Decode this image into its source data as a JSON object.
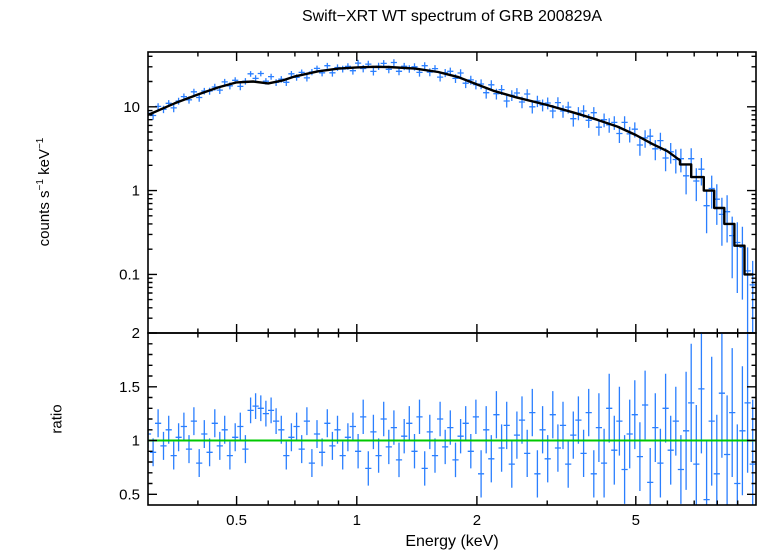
{
  "title": "Swift−XRT WT spectrum of GRB 200829A",
  "labels": {
    "counts_pre": "counts s",
    "sup_minus_one": "−1",
    "counts_mid": " keV"
  },
  "chart_data": [
    {
      "type": "scatter",
      "name": "spectrum",
      "title": "Swift−XRT WT spectrum of GRB 200829A",
      "xlabel": "Energy (keV)",
      "ylabel": "counts s⁻¹ keV⁻¹",
      "x_scale": "log",
      "y_scale": "log",
      "xlim": [
        0.3,
        10
      ],
      "ylim": [
        0.02,
        45
      ],
      "x_ticks": [
        0.5,
        1,
        2,
        5
      ],
      "x_tick_labels_visible": false,
      "y_ticks": [
        0.1,
        1,
        10
      ],
      "legend": "none",
      "grid": false,
      "colors": {
        "data": "#2a7fff",
        "model": "#000000"
      },
      "model": [
        [
          0.3,
          8.0
        ],
        [
          0.35,
          11.0
        ],
        [
          0.4,
          14.0
        ],
        [
          0.45,
          17.0
        ],
        [
          0.5,
          19.5
        ],
        [
          0.55,
          20.0
        ],
        [
          0.6,
          19.0
        ],
        [
          0.65,
          20.5
        ],
        [
          0.7,
          23.0
        ],
        [
          0.8,
          26.5
        ],
        [
          0.9,
          28.5
        ],
        [
          1.0,
          29.5
        ],
        [
          1.1,
          30.0
        ],
        [
          1.2,
          29.8
        ],
        [
          1.4,
          28.5
        ],
        [
          1.6,
          26.0
        ],
        [
          1.8,
          22.5
        ],
        [
          2.0,
          18.5
        ],
        [
          2.2,
          15.5
        ],
        [
          2.5,
          13.0
        ],
        [
          3.0,
          10.5
        ],
        [
          3.5,
          8.5
        ],
        [
          4.0,
          7.0
        ],
        [
          4.5,
          5.8
        ],
        [
          5.0,
          4.6
        ],
        [
          5.5,
          3.6
        ],
        [
          6.0,
          2.95
        ],
        [
          6.45,
          2.3
        ],
        [
          6.45,
          2.05
        ],
        [
          6.88,
          2.05
        ],
        [
          6.88,
          1.45
        ],
        [
          7.4,
          1.45
        ],
        [
          7.4,
          1.0
        ],
        [
          7.86,
          1.0
        ],
        [
          7.86,
          0.62
        ],
        [
          8.33,
          0.62
        ],
        [
          8.33,
          0.4
        ],
        [
          8.83,
          0.4
        ],
        [
          8.83,
          0.22
        ],
        [
          9.36,
          0.22
        ],
        [
          9.36,
          0.1
        ],
        [
          9.85,
          0.1
        ]
      ],
      "points": [
        [
          0.3,
          8.36,
          0.8
        ],
        [
          0.309,
          7.86,
          0.85
        ],
        [
          0.318,
          10.1,
          0.9
        ],
        [
          0.328,
          9.35,
          0.95
        ],
        [
          0.338,
          11.0,
          1.0
        ],
        [
          0.348,
          9.7,
          1.1
        ],
        [
          0.358,
          11.7,
          1.1
        ],
        [
          0.369,
          13.2,
          1.2
        ],
        [
          0.38,
          12.1,
          1.2
        ],
        [
          0.391,
          15.1,
          1.3
        ],
        [
          0.403,
          12.9,
          1.4
        ],
        [
          0.415,
          15.4,
          1.4
        ],
        [
          0.428,
          15.4,
          1.5
        ],
        [
          0.441,
          17.2,
          1.6
        ],
        [
          0.454,
          15.8,
          1.6
        ],
        [
          0.467,
          19.8,
          1.7
        ],
        [
          0.481,
          17.8,
          1.7
        ],
        [
          0.496,
          20.7,
          1.8
        ],
        [
          0.511,
          17.5,
          1.8
        ],
        [
          0.526,
          20.2,
          1.8
        ],
        [
          0.542,
          24.7,
          1.9
        ],
        [
          0.558,
          21.8,
          1.9
        ],
        [
          0.575,
          24.9,
          1.9
        ],
        [
          0.592,
          20.2,
          1.8
        ],
        [
          0.61,
          22.9,
          1.9
        ],
        [
          0.628,
          19.5,
          1.8
        ],
        [
          0.647,
          21.3,
          1.9
        ],
        [
          0.666,
          19.6,
          1.9
        ],
        [
          0.686,
          24.7,
          2.0
        ],
        [
          0.707,
          22.4,
          2.0
        ],
        [
          0.728,
          25.7,
          2.1
        ],
        [
          0.75,
          22.1,
          2.1
        ],
        [
          0.772,
          26.0,
          2.2
        ],
        [
          0.795,
          28.7,
          2.3
        ],
        [
          0.819,
          25.4,
          2.4
        ],
        [
          0.844,
          30.9,
          2.5
        ],
        [
          0.869,
          25.4,
          2.5
        ],
        [
          0.895,
          29.4,
          2.6
        ],
        [
          0.922,
          28.2,
          2.6
        ],
        [
          0.95,
          30.3,
          2.7
        ],
        [
          0.978,
          26.9,
          2.7
        ],
        [
          1.008,
          33.2,
          3.0
        ],
        [
          1.038,
          28.6,
          2.9
        ],
        [
          1.069,
          32.3,
          3.0
        ],
        [
          1.101,
          26.4,
          2.8
        ],
        [
          1.134,
          30.5,
          3.0
        ],
        [
          1.168,
          32.9,
          3.1
        ],
        [
          1.203,
          28.0,
          2.9
        ],
        [
          1.239,
          33.7,
          3.1
        ],
        [
          1.276,
          26.5,
          2.8
        ],
        [
          1.315,
          30.4,
          3.0
        ],
        [
          1.354,
          28.3,
          2.9
        ],
        [
          1.395,
          30.0,
          3.0
        ],
        [
          1.436,
          25.7,
          2.8
        ],
        [
          1.48,
          30.9,
          3.0
        ],
        [
          1.524,
          25.9,
          2.8
        ],
        [
          1.57,
          28.5,
          2.9
        ],
        [
          1.617,
          22.6,
          2.6
        ],
        [
          1.665,
          25.4,
          2.8
        ],
        [
          1.715,
          26.5,
          2.8
        ],
        [
          1.767,
          21.8,
          2.6
        ],
        [
          1.82,
          25.3,
          2.7
        ],
        [
          1.874,
          19.1,
          2.4
        ],
        [
          1.93,
          20.9,
          2.5
        ],
        [
          1.988,
          18.4,
          2.3
        ],
        [
          2.048,
          18.7,
          2.5
        ],
        [
          2.11,
          14.7,
          2.2
        ],
        [
          2.173,
          18.3,
          2.4
        ],
        [
          2.238,
          14.3,
          2.1
        ],
        [
          2.305,
          16.0,
          2.2
        ],
        [
          2.374,
          11.7,
          1.9
        ],
        [
          2.445,
          13.7,
          2.0
        ],
        [
          2.519,
          14.6,
          2.1
        ],
        [
          2.594,
          11.4,
          1.8
        ],
        [
          2.672,
          14.2,
          2.0
        ],
        [
          2.752,
          10.0,
          1.7
        ],
        [
          2.835,
          11.7,
          1.8
        ],
        [
          2.92,
          10.5,
          1.7
        ],
        [
          3.008,
          11.1,
          1.8
        ],
        [
          3.098,
          8.9,
          1.6
        ],
        [
          3.191,
          11.2,
          1.8
        ],
        [
          3.286,
          8.9,
          1.5
        ],
        [
          3.385,
          9.9,
          1.6
        ],
        [
          3.487,
          7.2,
          1.4
        ],
        [
          3.591,
          8.4,
          1.5
        ],
        [
          3.699,
          8.9,
          1.5
        ],
        [
          3.81,
          6.9,
          1.3
        ],
        [
          3.924,
          8.5,
          1.4
        ],
        [
          4.042,
          5.7,
          1.2
        ],
        [
          4.163,
          7.0,
          1.3
        ],
        [
          4.288,
          6.1,
          1.2
        ],
        [
          4.417,
          6.5,
          1.2
        ],
        [
          4.549,
          4.8,
          1.1
        ],
        [
          4.686,
          6.5,
          1.2
        ],
        [
          4.826,
          4.75,
          1.0
        ],
        [
          4.971,
          5.4,
          1.1
        ],
        [
          5.12,
          3.5,
          0.9
        ],
        [
          5.274,
          4.25,
          1.0
        ],
        [
          5.432,
          4.45,
          1.0
        ],
        [
          5.595,
          3.15,
          0.85
        ],
        [
          5.763,
          3.95,
          0.95
        ],
        [
          5.936,
          2.45,
          0.75
        ],
        [
          6.114,
          2.9,
          0.8
        ],
        [
          6.297,
          2.35,
          0.75
        ],
        [
          6.486,
          2.4,
          0.75
        ],
        [
          6.681,
          1.5,
          0.6
        ],
        [
          6.881,
          2.4,
          0.8
        ],
        [
          7.088,
          1.3,
          0.55
        ],
        [
          7.3,
          1.8,
          0.65
        ],
        [
          7.519,
          0.66,
          0.35
        ],
        [
          7.745,
          1.06,
          0.45
        ],
        [
          7.977,
          0.79,
          0.4
        ],
        [
          8.216,
          0.52,
          0.3
        ],
        [
          8.463,
          0.56,
          0.32
        ],
        [
          8.717,
          0.29,
          0.2
        ],
        [
          8.978,
          0.24,
          0.18
        ],
        [
          9.248,
          0.21,
          0.16
        ],
        [
          9.525,
          0.11,
          0.1
        ],
        [
          9.811,
          0.075,
          0.07
        ]
      ]
    },
    {
      "type": "scatter",
      "name": "ratio",
      "xlabel": "Energy (keV)",
      "ylabel": "ratio",
      "x_scale": "log",
      "y_scale": "linear",
      "xlim": [
        0.3,
        10
      ],
      "ylim": [
        0.4,
        2.0
      ],
      "x_ticks": [
        0.5,
        1,
        2,
        5
      ],
      "x_tick_labels_visible": true,
      "y_ticks": [
        0.5,
        1,
        1.5,
        2
      ],
      "reference_line": 1.0,
      "legend": "none",
      "grid": false,
      "colors": {
        "data": "#2a7fff",
        "reference": "#00c800"
      },
      "points": [
        [
          0.3,
          1.06,
          0.13
        ],
        [
          0.309,
          0.89,
          0.13
        ],
        [
          0.318,
          1.16,
          0.13
        ],
        [
          0.328,
          0.95,
          0.13
        ],
        [
          0.338,
          1.1,
          0.13
        ],
        [
          0.348,
          0.86,
          0.13
        ],
        [
          0.358,
          1.03,
          0.13
        ],
        [
          0.369,
          1.13,
          0.13
        ],
        [
          0.38,
          0.92,
          0.13
        ],
        [
          0.391,
          1.18,
          0.13
        ],
        [
          0.403,
          0.79,
          0.13
        ],
        [
          0.415,
          1.06,
          0.13
        ],
        [
          0.428,
          0.89,
          0.13
        ],
        [
          0.441,
          1.16,
          0.13
        ],
        [
          0.454,
          0.95,
          0.13
        ],
        [
          0.467,
          1.1,
          0.13
        ],
        [
          0.481,
          0.86,
          0.13
        ],
        [
          0.496,
          1.03,
          0.13
        ],
        [
          0.511,
          1.13,
          0.13
        ],
        [
          0.526,
          0.92,
          0.13
        ],
        [
          0.542,
          1.28,
          0.12
        ],
        [
          0.558,
          1.32,
          0.12
        ],
        [
          0.575,
          1.3,
          0.12
        ],
        [
          0.592,
          1.25,
          0.12
        ],
        [
          0.61,
          1.28,
          0.12
        ],
        [
          0.628,
          1.18,
          0.12
        ],
        [
          0.647,
          1.1,
          0.13
        ],
        [
          0.666,
          0.86,
          0.13
        ],
        [
          0.686,
          1.03,
          0.13
        ],
        [
          0.707,
          1.13,
          0.13
        ],
        [
          0.728,
          0.92,
          0.13
        ],
        [
          0.75,
          1.18,
          0.13
        ],
        [
          0.772,
          0.79,
          0.13
        ],
        [
          0.795,
          1.06,
          0.13
        ],
        [
          0.819,
          0.89,
          0.13
        ],
        [
          0.844,
          1.16,
          0.13
        ],
        [
          0.869,
          0.95,
          0.13
        ],
        [
          0.895,
          1.1,
          0.13
        ],
        [
          0.922,
          0.86,
          0.13
        ],
        [
          0.95,
          1.03,
          0.13
        ],
        [
          0.978,
          1.13,
          0.13
        ],
        [
          1.008,
          0.9,
          0.16
        ],
        [
          1.038,
          1.22,
          0.16
        ],
        [
          1.069,
          0.74,
          0.16
        ],
        [
          1.101,
          1.08,
          0.16
        ],
        [
          1.134,
          0.86,
          0.16
        ],
        [
          1.168,
          1.2,
          0.16
        ],
        [
          1.203,
          0.94,
          0.16
        ],
        [
          1.239,
          1.12,
          0.16
        ],
        [
          1.276,
          0.82,
          0.16
        ],
        [
          1.315,
          1.04,
          0.16
        ],
        [
          1.354,
          1.16,
          0.16
        ],
        [
          1.395,
          0.9,
          0.16
        ],
        [
          1.436,
          1.22,
          0.16
        ],
        [
          1.48,
          0.74,
          0.16
        ],
        [
          1.524,
          1.08,
          0.16
        ],
        [
          1.57,
          0.86,
          0.16
        ],
        [
          1.617,
          1.2,
          0.16
        ],
        [
          1.665,
          0.94,
          0.16
        ],
        [
          1.715,
          1.12,
          0.16
        ],
        [
          1.767,
          0.82,
          0.16
        ],
        [
          1.82,
          1.04,
          0.16
        ],
        [
          1.874,
          1.16,
          0.16
        ],
        [
          1.93,
          0.9,
          0.16
        ],
        [
          1.988,
          1.22,
          0.16
        ],
        [
          2.048,
          0.69,
          0.22
        ],
        [
          2.11,
          1.1,
          0.22
        ],
        [
          2.173,
          0.83,
          0.22
        ],
        [
          2.238,
          1.24,
          0.22
        ],
        [
          2.305,
          0.93,
          0.22
        ],
        [
          2.374,
          1.14,
          0.22
        ],
        [
          2.445,
          0.78,
          0.22
        ],
        [
          2.519,
          1.05,
          0.22
        ],
        [
          2.594,
          1.19,
          0.22
        ],
        [
          2.672,
          0.88,
          0.22
        ],
        [
          2.752,
          1.26,
          0.22
        ],
        [
          2.835,
          0.69,
          0.22
        ],
        [
          2.92,
          1.1,
          0.22
        ],
        [
          3.008,
          0.83,
          0.22
        ],
        [
          3.098,
          1.24,
          0.22
        ],
        [
          3.191,
          0.93,
          0.22
        ],
        [
          3.286,
          1.14,
          0.22
        ],
        [
          3.385,
          0.78,
          0.22
        ],
        [
          3.487,
          1.05,
          0.22
        ],
        [
          3.591,
          1.19,
          0.22
        ],
        [
          3.699,
          0.88,
          0.22
        ],
        [
          3.81,
          1.26,
          0.22
        ],
        [
          3.924,
          0.69,
          0.22
        ],
        [
          4.042,
          1.12,
          0.32
        ],
        [
          4.163,
          0.79,
          0.32
        ],
        [
          4.288,
          1.3,
          0.32
        ],
        [
          4.417,
          0.91,
          0.32
        ],
        [
          4.549,
          1.18,
          0.32
        ],
        [
          4.686,
          0.73,
          0.32
        ],
        [
          4.826,
          1.06,
          0.32
        ],
        [
          4.971,
          1.24,
          0.32
        ],
        [
          5.12,
          0.85,
          0.32
        ],
        [
          5.274,
          1.33,
          0.32
        ],
        [
          5.432,
          0.61,
          0.32
        ],
        [
          5.595,
          1.12,
          0.32
        ],
        [
          5.763,
          0.79,
          0.32
        ],
        [
          5.936,
          1.3,
          0.32
        ],
        [
          6.114,
          0.91,
          0.32
        ],
        [
          6.297,
          1.18,
          0.32
        ],
        [
          6.486,
          0.73,
          0.32
        ],
        [
          6.681,
          1.09,
          0.55
        ],
        [
          6.881,
          1.35,
          0.55
        ],
        [
          7.088,
          0.78,
          0.55
        ],
        [
          7.3,
          1.48,
          0.6
        ],
        [
          7.519,
          0.45,
          0.55
        ],
        [
          7.745,
          1.18,
          0.6
        ],
        [
          7.977,
          0.69,
          0.55
        ],
        [
          8.216,
          1.44,
          0.6
        ],
        [
          8.463,
          0.87,
          0.55
        ],
        [
          8.717,
          1.26,
          0.6
        ],
        [
          8.978,
          0.6,
          0.55
        ],
        [
          9.248,
          1.09,
          0.6
        ],
        [
          9.525,
          1.35,
          0.65
        ],
        [
          9.811,
          0.78,
          0.6
        ]
      ]
    }
  ]
}
